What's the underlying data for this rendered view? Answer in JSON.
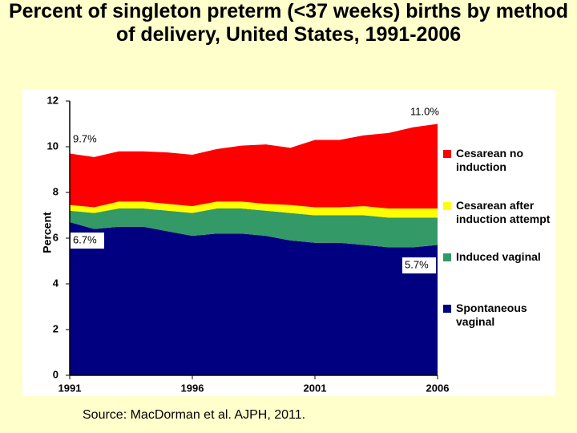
{
  "chart_data": {
    "type": "stacked-area",
    "title": "Percent of singleton preterm (<37 weeks) births by method of delivery, United States, 1991-2006",
    "y_label": "Percent",
    "x": [
      1991,
      1992,
      1993,
      1994,
      1995,
      1996,
      1997,
      1998,
      1999,
      2000,
      2001,
      2002,
      2003,
      2004,
      2005,
      2006
    ],
    "series": [
      {
        "name": "Spontaneous vaginal",
        "color": "#000080",
        "values": [
          6.7,
          6.4,
          6.5,
          6.5,
          6.3,
          6.1,
          6.2,
          6.2,
          6.1,
          5.9,
          5.8,
          5.8,
          5.7,
          5.6,
          5.6,
          5.7
        ]
      },
      {
        "name": "Induced vaginal",
        "color": "#339966",
        "values": [
          0.5,
          0.7,
          0.8,
          0.8,
          0.9,
          1.0,
          1.1,
          1.1,
          1.1,
          1.2,
          1.2,
          1.2,
          1.3,
          1.3,
          1.3,
          1.2
        ]
      },
      {
        "name": "Cesarean after induction attempt",
        "color": "#ffff00",
        "values": [
          0.25,
          0.25,
          0.3,
          0.3,
          0.3,
          0.3,
          0.3,
          0.3,
          0.3,
          0.35,
          0.35,
          0.35,
          0.4,
          0.4,
          0.4,
          0.4
        ]
      },
      {
        "name": "Cesarean no induction",
        "color": "#ff0000",
        "values": [
          2.25,
          2.2,
          2.2,
          2.2,
          2.25,
          2.25,
          2.3,
          2.45,
          2.6,
          2.5,
          2.95,
          2.95,
          3.1,
          3.3,
          3.55,
          3.7
        ]
      }
    ],
    "xlim": [
      1991,
      2006
    ],
    "xticks": [
      1991,
      1996,
      2001,
      2006
    ],
    "ylim": [
      0,
      12
    ],
    "yticks": [
      0,
      2,
      4,
      6,
      8,
      10,
      12
    ],
    "annotations": [
      "9.7%",
      "11.0%",
      "6.7%",
      "5.7%"
    ],
    "source": "Source: MacDorman et al. AJPH, 2011."
  }
}
